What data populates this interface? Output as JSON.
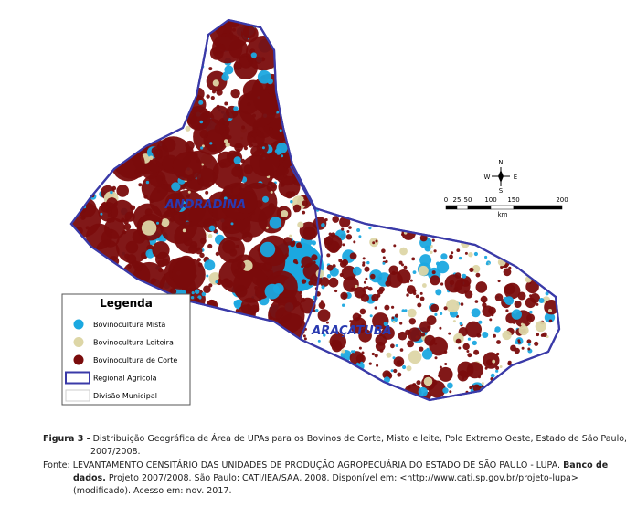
{
  "map": {
    "regions": [
      "ANDRADINA",
      "ARAÇATUBA"
    ],
    "compass": {
      "n": "N",
      "s": "S",
      "w": "W",
      "e": "E"
    },
    "scale": {
      "labels": [
        "0",
        "25",
        "50",
        "100",
        "150",
        "200"
      ],
      "unit": "km"
    },
    "legend": {
      "title": "Legenda",
      "items": [
        {
          "label": "Bovinocultura Mista",
          "color": "#1ba8e0"
        },
        {
          "label": "Bovinocultura Leiteira",
          "color": "#ddd6a6"
        },
        {
          "label": "Bovinocultura de Corte",
          "color": "#7a0c0c"
        },
        {
          "label": "Regional Agrícola",
          "color": "#3a3aa8"
        },
        {
          "label": "Divisão Municipal",
          "color": "#cccccc"
        }
      ]
    }
  },
  "caption": {
    "label": "Figura 3 -",
    "text": "Distribuição Geográfica de Área de UPAs para os Bovinos de Corte, Misto e leite, Polo Extremo Oeste, Estado de São Paulo, 2007/2008."
  },
  "source": {
    "lead": "Fonte: LEVANTAMENTO CENSITÁRIO DAS UNIDADES DE PRODUÇÃO AGROPECUÁRIA DO ESTADO DE SÃO PAULO - LUPA.",
    "bold": "Banco de dados.",
    "rest": "Projeto 2007/2008. São Paulo: CATI/IEA/SAA, 2008. Disponível em: <http://www.cati.sp.gov.br/projeto-lupa> (modificado). Acesso em: nov. 2017."
  }
}
